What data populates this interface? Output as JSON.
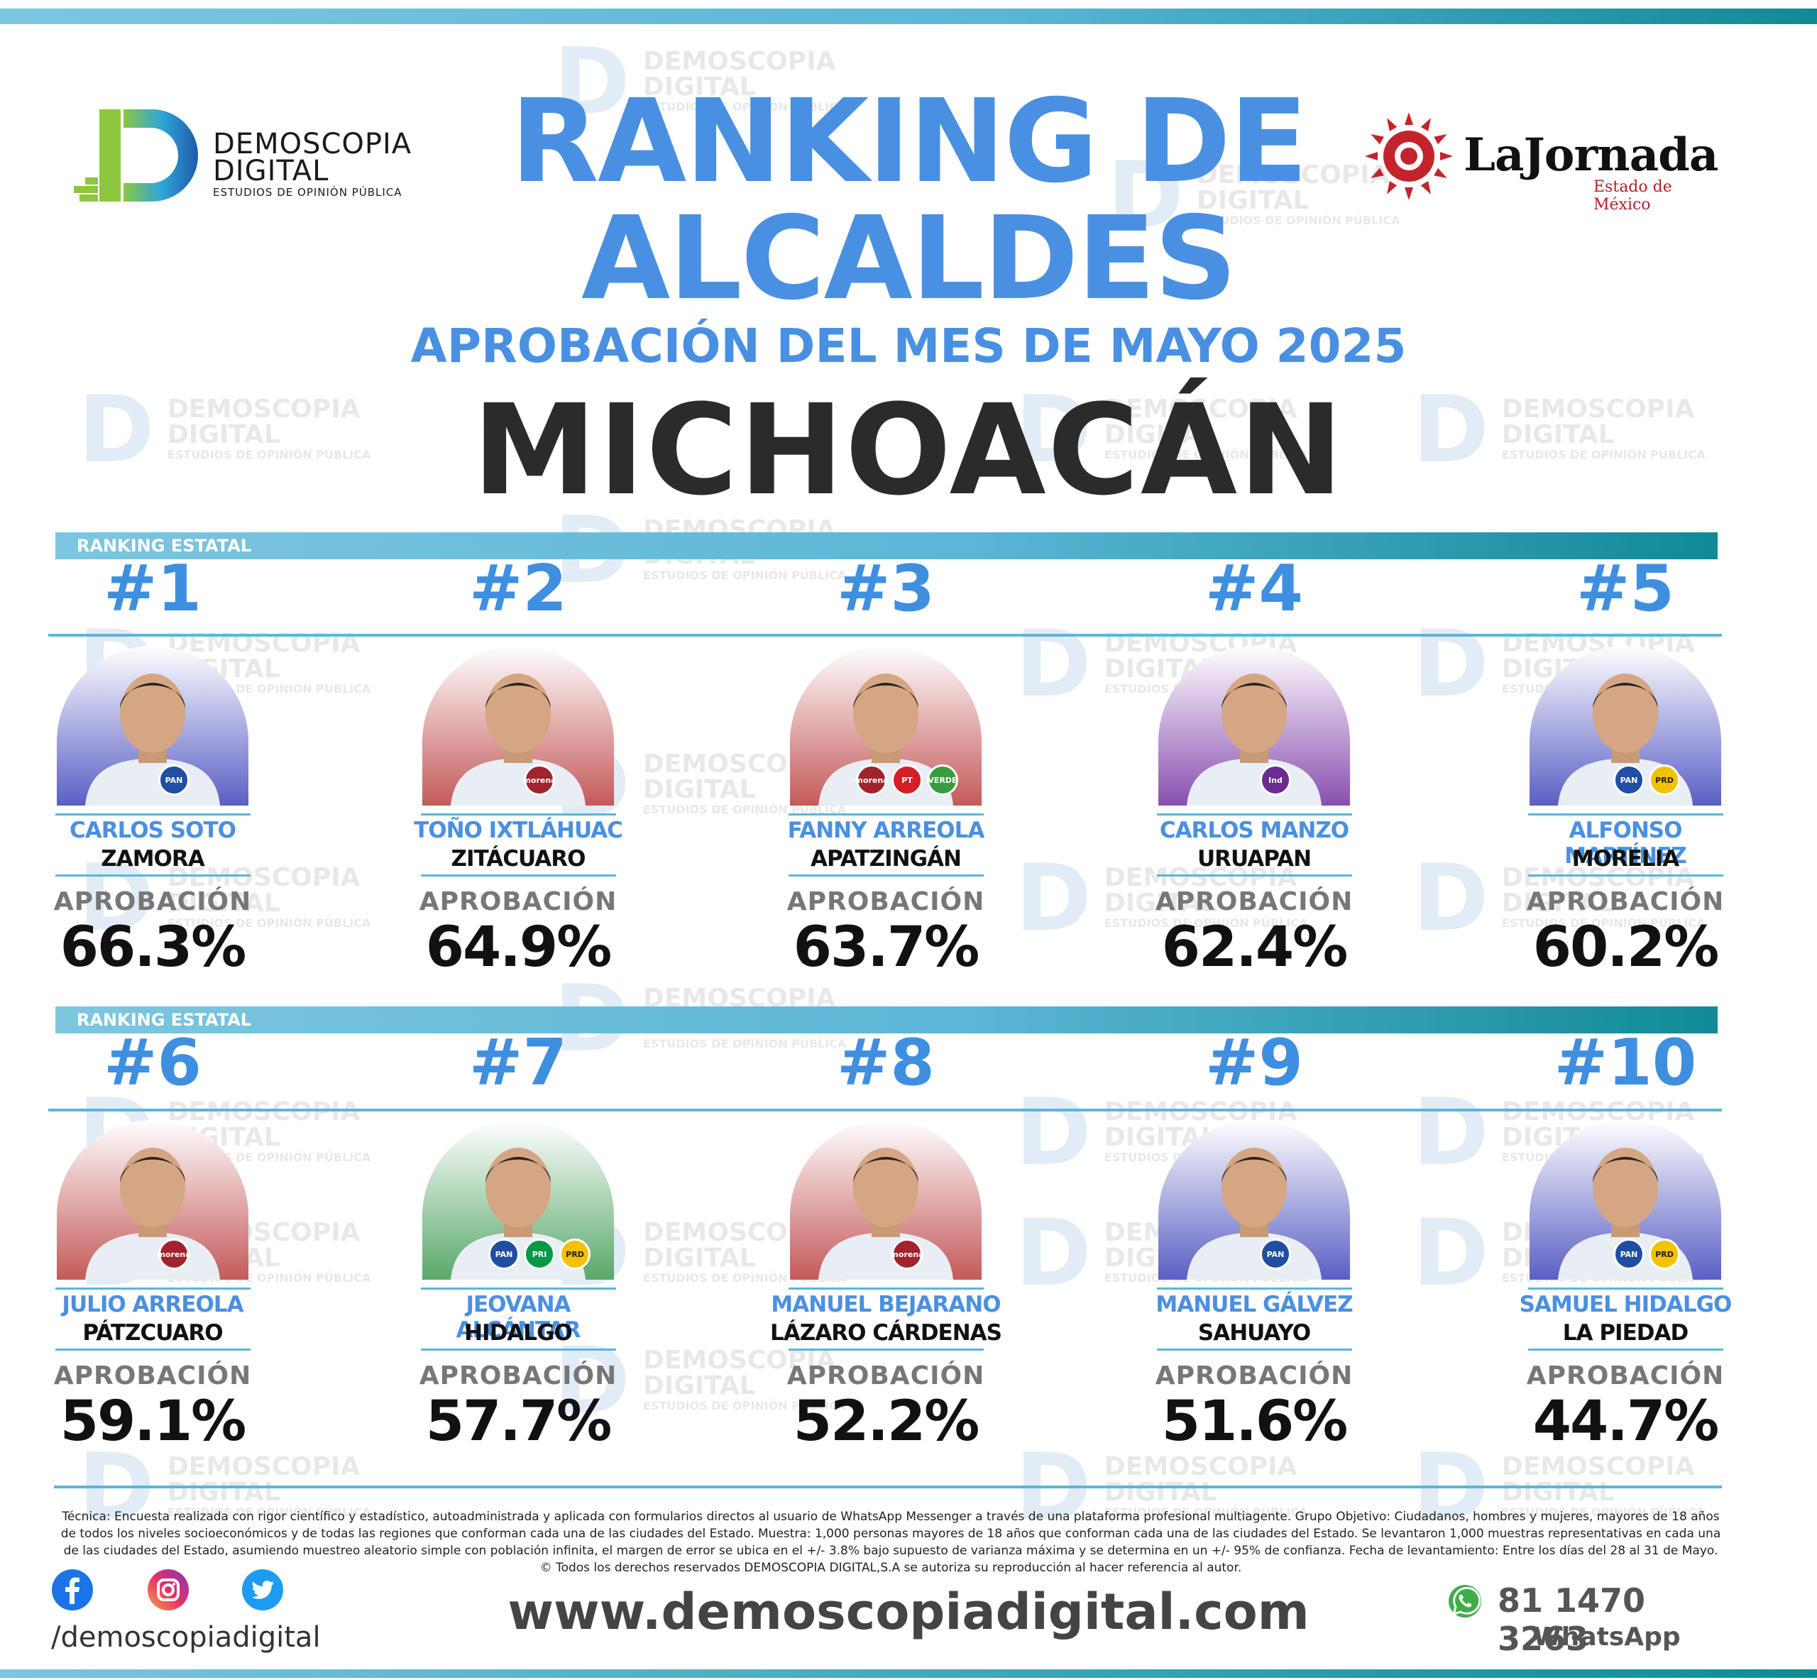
{
  "brand": {
    "name_line1": "DEMOSCOPIA",
    "name_line2": "DIGITAL",
    "tagline": "ESTUDIOS DE OPINIÓN PÚBLICA"
  },
  "partner": {
    "name": "LaJornada",
    "subtitle": "Estado de México"
  },
  "title": {
    "line1": "RANKING DE",
    "line2": "ALCALDES",
    "subtitle": "APROBACIÓN DEL MES DE MAYO 2025",
    "state": "MICHOACÁN"
  },
  "section_label": "RANKING ESTATAL",
  "approval_label": "APROBACIÓN",
  "mayors": [
    {
      "rank": "#1",
      "name": "CARLOS SOTO",
      "city": "ZAMORA",
      "approval": "66.3%",
      "bg": "#5a5fc4",
      "parties": [
        "PAN"
      ]
    },
    {
      "rank": "#2",
      "name": "TOÑO IXTLÁHUAC",
      "city": "ZITÁCUARO",
      "approval": "64.9%",
      "bg": "#c45a5a",
      "parties": [
        "morena"
      ]
    },
    {
      "rank": "#3",
      "name": "FANNY ARREOLA",
      "city": "APATZINGÁN",
      "approval": "63.7%",
      "bg": "#c45a5a",
      "parties": [
        "morena",
        "PT",
        "VERDE"
      ]
    },
    {
      "rank": "#4",
      "name": "CARLOS MANZO",
      "city": "URUAPAN",
      "approval": "62.4%",
      "bg": "#8a4fb0",
      "parties": [
        "Independiente"
      ]
    },
    {
      "rank": "#5",
      "name": "ALFONSO MARTÍNEZ",
      "city": "MORELIA",
      "approval": "60.2%",
      "bg": "#5a5fc4",
      "parties": [
        "PAN",
        "PRD"
      ]
    },
    {
      "rank": "#6",
      "name": "JULIO ARREOLA",
      "city": "PÁTZCUARO",
      "approval": "59.1%",
      "bg": "#c45a5a",
      "parties": [
        "morena"
      ]
    },
    {
      "rank": "#7",
      "name": "JEOVANA ALCÁNTAR",
      "city": "HIDALGO",
      "approval": "57.7%",
      "bg": "#5aa86a",
      "parties": [
        "PAN",
        "PRI",
        "PRD"
      ]
    },
    {
      "rank": "#8",
      "name": "MANUEL BEJARANO",
      "city": "LÁZARO CÁRDENAS",
      "approval": "52.2%",
      "bg": "#c45a5a",
      "parties": [
        "morena"
      ]
    },
    {
      "rank": "#9",
      "name": "MANUEL GÁLVEZ",
      "city": "SAHUAYO",
      "approval": "51.6%",
      "bg": "#5a5fc4",
      "parties": [
        "PAN"
      ]
    },
    {
      "rank": "#10",
      "name": "SAMUEL HIDALGO",
      "city": "LA PIEDAD",
      "approval": "44.7%",
      "bg": "#5a5fc4",
      "parties": [
        "PAN",
        "PRD"
      ]
    }
  ],
  "methodology": "Técnica: Encuesta realizada con rigor científico y estadístico, autoadministrada y aplicada con formularios directos al usuario de WhatsApp Messenger a través de una plataforma profesional multiagente. Grupo Objetivo: Ciudadanos, hombres y mujeres, mayores de 18 años de todos los niveles socioeconómicos y de todas las regiones que conforman cada una de las ciudades del Estado. Muestra: 1,000 personas mayores de 18 años que conforman cada una de las ciudades del Estado. Se levantaron 1,000 muestras representativas en cada una de las ciudades del Estado, asumiendo muestreo aleatorio simple con población infinita, el margen de error se ubica en el +/- 3.8% bajo supuesto de varianza máxima y se determina en un +/- 95% de confianza. Fecha de levantamiento: Entre los días del 28 al 31 de Mayo. © Todos los derechos reservados DEMOSCOPIA DIGITAL,S.A se autoriza su reproducción al hacer referencia al autor.",
  "social": {
    "handle": "/demoscopiadigital",
    "icons": [
      "facebook-icon",
      "instagram-icon",
      "twitter-icon"
    ]
  },
  "website": "www.demoscopiadigital.com",
  "whatsapp": {
    "phone": "81 1470 3263",
    "label": "WhatsApp"
  },
  "colors": {
    "title_blue": "#4a90e2",
    "rank_blue": "#3f8fe0",
    "bar_start": "#7cc6e0",
    "bar_end": "#108a97"
  }
}
